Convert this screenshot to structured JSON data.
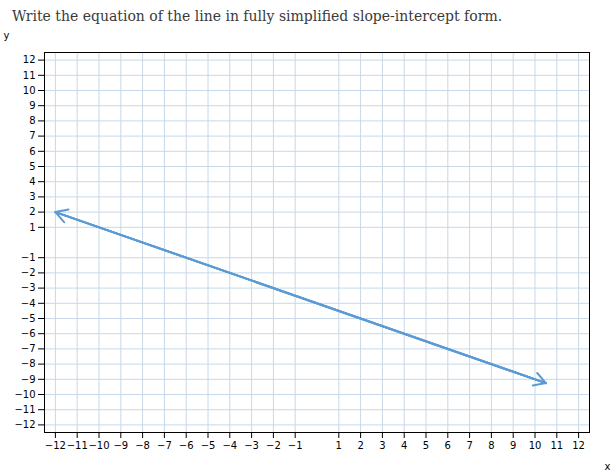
{
  "chart_data": {
    "type": "line",
    "title": "Write the equation of the line in fully simplified slope-intercept form.",
    "x": [
      -12,
      10.5
    ],
    "values": [
      2,
      -9.25
    ],
    "color": "#5b9bd5",
    "xlabel": "x",
    "ylabel": "y",
    "xlim": [
      -12.5,
      12.5
    ],
    "ylim": [
      -12.5,
      12.5
    ],
    "xticks": [
      -12,
      -11,
      -10,
      -9,
      -8,
      -7,
      -6,
      -5,
      -4,
      -3,
      -2,
      -1,
      1,
      2,
      3,
      4,
      5,
      6,
      7,
      8,
      9,
      10,
      11,
      12
    ],
    "yticks": [
      -12,
      -11,
      -10,
      -9,
      -8,
      -7,
      -6,
      -5,
      -4,
      -3,
      -2,
      -1,
      1,
      2,
      3,
      4,
      5,
      6,
      7,
      8,
      9,
      10,
      11,
      12
    ],
    "grid": true
  }
}
